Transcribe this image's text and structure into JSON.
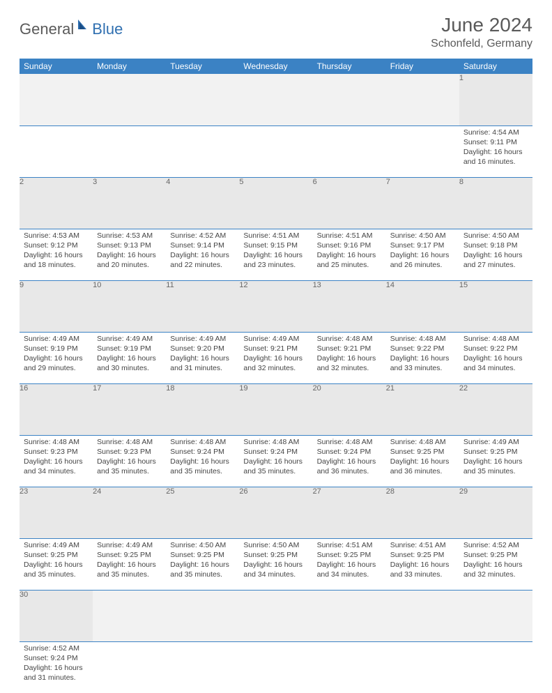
{
  "brand": {
    "part1": "General",
    "part2": "Blue"
  },
  "title": "June 2024",
  "location": "Schonfeld, Germany",
  "colors": {
    "header_bg": "#3b82c4",
    "header_fg": "#ffffff",
    "daynum_bg": "#e8e8e8",
    "border": "#3b82c4",
    "brand_gray": "#5a5a5a",
    "brand_blue": "#2f6fb0"
  },
  "day_headers": [
    "Sunday",
    "Monday",
    "Tuesday",
    "Wednesday",
    "Thursday",
    "Friday",
    "Saturday"
  ],
  "weeks": [
    {
      "nums": [
        "",
        "",
        "",
        "",
        "",
        "",
        "1"
      ],
      "cells": [
        null,
        null,
        null,
        null,
        null,
        null,
        {
          "sr": "4:54 AM",
          "ss": "9:11 PM",
          "dl": "16 hours and 16 minutes."
        }
      ]
    },
    {
      "nums": [
        "2",
        "3",
        "4",
        "5",
        "6",
        "7",
        "8"
      ],
      "cells": [
        {
          "sr": "4:53 AM",
          "ss": "9:12 PM",
          "dl": "16 hours and 18 minutes."
        },
        {
          "sr": "4:53 AM",
          "ss": "9:13 PM",
          "dl": "16 hours and 20 minutes."
        },
        {
          "sr": "4:52 AM",
          "ss": "9:14 PM",
          "dl": "16 hours and 22 minutes."
        },
        {
          "sr": "4:51 AM",
          "ss": "9:15 PM",
          "dl": "16 hours and 23 minutes."
        },
        {
          "sr": "4:51 AM",
          "ss": "9:16 PM",
          "dl": "16 hours and 25 minutes."
        },
        {
          "sr": "4:50 AM",
          "ss": "9:17 PM",
          "dl": "16 hours and 26 minutes."
        },
        {
          "sr": "4:50 AM",
          "ss": "9:18 PM",
          "dl": "16 hours and 27 minutes."
        }
      ]
    },
    {
      "nums": [
        "9",
        "10",
        "11",
        "12",
        "13",
        "14",
        "15"
      ],
      "cells": [
        {
          "sr": "4:49 AM",
          "ss": "9:19 PM",
          "dl": "16 hours and 29 minutes."
        },
        {
          "sr": "4:49 AM",
          "ss": "9:19 PM",
          "dl": "16 hours and 30 minutes."
        },
        {
          "sr": "4:49 AM",
          "ss": "9:20 PM",
          "dl": "16 hours and 31 minutes."
        },
        {
          "sr": "4:49 AM",
          "ss": "9:21 PM",
          "dl": "16 hours and 32 minutes."
        },
        {
          "sr": "4:48 AM",
          "ss": "9:21 PM",
          "dl": "16 hours and 32 minutes."
        },
        {
          "sr": "4:48 AM",
          "ss": "9:22 PM",
          "dl": "16 hours and 33 minutes."
        },
        {
          "sr": "4:48 AM",
          "ss": "9:22 PM",
          "dl": "16 hours and 34 minutes."
        }
      ]
    },
    {
      "nums": [
        "16",
        "17",
        "18",
        "19",
        "20",
        "21",
        "22"
      ],
      "cells": [
        {
          "sr": "4:48 AM",
          "ss": "9:23 PM",
          "dl": "16 hours and 34 minutes."
        },
        {
          "sr": "4:48 AM",
          "ss": "9:23 PM",
          "dl": "16 hours and 35 minutes."
        },
        {
          "sr": "4:48 AM",
          "ss": "9:24 PM",
          "dl": "16 hours and 35 minutes."
        },
        {
          "sr": "4:48 AM",
          "ss": "9:24 PM",
          "dl": "16 hours and 35 minutes."
        },
        {
          "sr": "4:48 AM",
          "ss": "9:24 PM",
          "dl": "16 hours and 36 minutes."
        },
        {
          "sr": "4:48 AM",
          "ss": "9:25 PM",
          "dl": "16 hours and 36 minutes."
        },
        {
          "sr": "4:49 AM",
          "ss": "9:25 PM",
          "dl": "16 hours and 35 minutes."
        }
      ]
    },
    {
      "nums": [
        "23",
        "24",
        "25",
        "26",
        "27",
        "28",
        "29"
      ],
      "cells": [
        {
          "sr": "4:49 AM",
          "ss": "9:25 PM",
          "dl": "16 hours and 35 minutes."
        },
        {
          "sr": "4:49 AM",
          "ss": "9:25 PM",
          "dl": "16 hours and 35 minutes."
        },
        {
          "sr": "4:50 AM",
          "ss": "9:25 PM",
          "dl": "16 hours and 35 minutes."
        },
        {
          "sr": "4:50 AM",
          "ss": "9:25 PM",
          "dl": "16 hours and 34 minutes."
        },
        {
          "sr": "4:51 AM",
          "ss": "9:25 PM",
          "dl": "16 hours and 34 minutes."
        },
        {
          "sr": "4:51 AM",
          "ss": "9:25 PM",
          "dl": "16 hours and 33 minutes."
        },
        {
          "sr": "4:52 AM",
          "ss": "9:25 PM",
          "dl": "16 hours and 32 minutes."
        }
      ]
    },
    {
      "nums": [
        "30",
        "",
        "",
        "",
        "",
        "",
        ""
      ],
      "cells": [
        {
          "sr": "4:52 AM",
          "ss": "9:24 PM",
          "dl": "16 hours and 31 minutes."
        },
        null,
        null,
        null,
        null,
        null,
        null
      ]
    }
  ],
  "labels": {
    "sunrise": "Sunrise: ",
    "sunset": "Sunset: ",
    "daylight": "Daylight: "
  }
}
